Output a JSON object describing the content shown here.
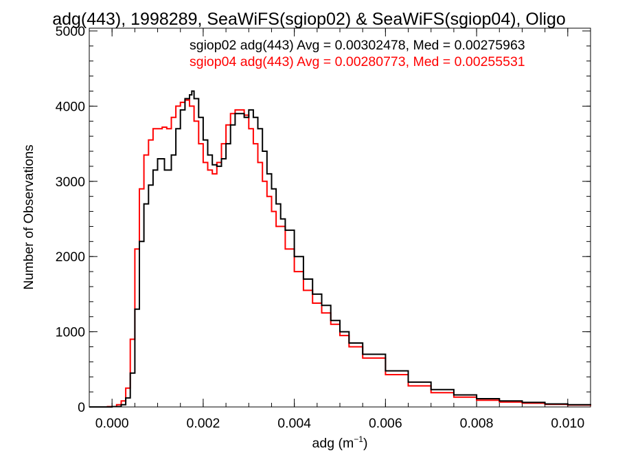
{
  "chart_data": {
    "type": "line",
    "title": "adg(443), 1998289, SeaWiFS(sgiop02) & SeaWiFS(sgiop04), Oligo",
    "xlabel_main": "adg (m",
    "xlabel_sup": "−1",
    "xlabel_close": ")",
    "ylabel": "Number of Observations",
    "xlim": [
      -0.0005,
      0.0105
    ],
    "ylim": [
      0,
      5000
    ],
    "xticks": [
      0.0,
      0.002,
      0.004,
      0.006,
      0.008,
      0.01
    ],
    "xtick_labels": [
      "0.000",
      "0.002",
      "0.004",
      "0.006",
      "0.008",
      "0.010"
    ],
    "yticks": [
      0,
      1000,
      2000,
      3000,
      4000,
      5000
    ],
    "ytick_labels": [
      "0",
      "1000",
      "2000",
      "3000",
      "4000",
      "5000"
    ],
    "grid": false,
    "legend_position": "top-right",
    "series": [
      {
        "name": "sgiop02",
        "color": "#000000",
        "label": "sgiop02 adg(443) Avg = 0.00302478, Med = 0.00275963",
        "x": [
          -0.0005,
          0.0,
          0.0002,
          0.0003,
          0.0004,
          0.0005,
          0.0006,
          0.0007,
          0.0008,
          0.0009,
          0.001,
          0.00115,
          0.0013,
          0.0014,
          0.0015,
          0.0016,
          0.0017,
          0.00175,
          0.0018,
          0.0019,
          0.002,
          0.0021,
          0.0022,
          0.0023,
          0.0024,
          0.0025,
          0.0026,
          0.0027,
          0.0028,
          0.0029,
          0.003,
          0.0031,
          0.0032,
          0.0033,
          0.0034,
          0.0035,
          0.0036,
          0.0037,
          0.0038,
          0.004,
          0.0042,
          0.0044,
          0.0046,
          0.0048,
          0.005,
          0.0052,
          0.0055,
          0.006,
          0.0065,
          0.007,
          0.0075,
          0.008,
          0.0085,
          0.009,
          0.0095,
          0.01,
          0.0105
        ],
        "y": [
          0,
          5,
          30,
          120,
          450,
          1300,
          2200,
          2700,
          2950,
          3150,
          3300,
          3150,
          3350,
          3700,
          3950,
          4100,
          4150,
          4200,
          4100,
          3850,
          3550,
          3350,
          3220,
          3200,
          3300,
          3500,
          3750,
          3900,
          3900,
          3850,
          3950,
          3850,
          3700,
          3400,
          3100,
          2900,
          2700,
          2500,
          2350,
          2000,
          1700,
          1500,
          1350,
          1150,
          1000,
          850,
          700,
          480,
          330,
          230,
          160,
          110,
          80,
          60,
          40,
          30,
          20
        ]
      },
      {
        "name": "sgiop04",
        "color": "#ff0000",
        "label": "sgiop04 adg(443) Avg = 0.00280773, Med = 0.00255531",
        "x": [
          -0.0005,
          -0.0001,
          0.0001,
          0.0002,
          0.0003,
          0.0004,
          0.0005,
          0.0006,
          0.0007,
          0.0008,
          0.0009,
          0.001,
          0.0011,
          0.0012,
          0.0013,
          0.0014,
          0.0015,
          0.0016,
          0.0017,
          0.0018,
          0.0019,
          0.002,
          0.0021,
          0.0022,
          0.0023,
          0.0024,
          0.0025,
          0.0026,
          0.0027,
          0.0028,
          0.0029,
          0.003,
          0.0031,
          0.0032,
          0.0033,
          0.0034,
          0.0035,
          0.0036,
          0.0038,
          0.004,
          0.0042,
          0.0044,
          0.0046,
          0.0048,
          0.005,
          0.0052,
          0.0055,
          0.006,
          0.0065,
          0.007,
          0.0075,
          0.008,
          0.0085,
          0.009,
          0.0095,
          0.01,
          0.0105
        ],
        "y": [
          0,
          5,
          30,
          80,
          250,
          900,
          2100,
          2900,
          3350,
          3550,
          3700,
          3700,
          3720,
          3700,
          3850,
          4000,
          4050,
          4080,
          4000,
          3800,
          3500,
          3250,
          3150,
          3100,
          3250,
          3500,
          3750,
          3900,
          3950,
          3950,
          3880,
          3700,
          3500,
          3250,
          3000,
          2800,
          2600,
          2400,
          2100,
          1800,
          1550,
          1380,
          1250,
          1100,
          950,
          800,
          650,
          430,
          280,
          190,
          130,
          90,
          65,
          50,
          35,
          25,
          15
        ]
      }
    ]
  }
}
